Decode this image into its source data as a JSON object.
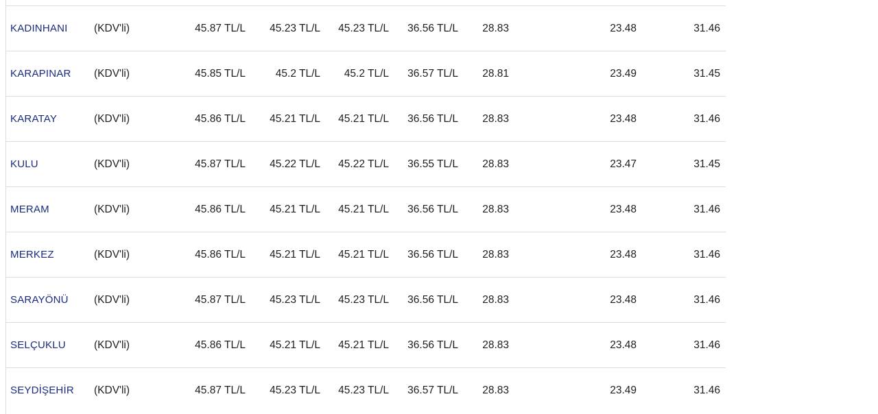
{
  "page": {
    "background_color": "#ffffff"
  },
  "table": {
    "accent_color": "#1a2b7c",
    "border_color": "#dcdcdc",
    "unit": "TL/L",
    "rows": [
      {
        "district": "KADINHANI",
        "tax_note": "(KDV'li)",
        "values": [
          "45.87 TL/L",
          "45.23 TL/L",
          "45.23 TL/L",
          "36.56 TL/L",
          "28.83",
          "23.48",
          "31.46"
        ]
      },
      {
        "district": "KARAPINAR",
        "tax_note": "(KDV'li)",
        "values": [
          "45.85 TL/L",
          "45.2 TL/L",
          "45.2 TL/L",
          "36.57 TL/L",
          "28.81",
          "23.49",
          "31.45"
        ]
      },
      {
        "district": "KARATAY",
        "tax_note": "(KDV'li)",
        "values": [
          "45.86 TL/L",
          "45.21 TL/L",
          "45.21 TL/L",
          "36.56 TL/L",
          "28.83",
          "23.48",
          "31.46"
        ]
      },
      {
        "district": "KULU",
        "tax_note": "(KDV'li)",
        "values": [
          "45.87 TL/L",
          "45.22 TL/L",
          "45.22 TL/L",
          "36.55 TL/L",
          "28.83",
          "23.47",
          "31.45"
        ]
      },
      {
        "district": "MERAM",
        "tax_note": "(KDV'li)",
        "values": [
          "45.86 TL/L",
          "45.21 TL/L",
          "45.21 TL/L",
          "36.56 TL/L",
          "28.83",
          "23.48",
          "31.46"
        ]
      },
      {
        "district": "MERKEZ",
        "tax_note": "(KDV'li)",
        "values": [
          "45.86 TL/L",
          "45.21 TL/L",
          "45.21 TL/L",
          "36.56 TL/L",
          "28.83",
          "23.48",
          "31.46"
        ]
      },
      {
        "district": "SARAYÖNÜ",
        "tax_note": "(KDV'li)",
        "values": [
          "45.87 TL/L",
          "45.23 TL/L",
          "45.23 TL/L",
          "36.56 TL/L",
          "28.83",
          "23.48",
          "31.46"
        ]
      },
      {
        "district": "SELÇUKLU",
        "tax_note": "(KDV'li)",
        "values": [
          "45.86 TL/L",
          "45.21 TL/L",
          "45.21 TL/L",
          "36.56 TL/L",
          "28.83",
          "23.48",
          "31.46"
        ]
      },
      {
        "district": "SEYDİŞEHİR",
        "tax_note": "(KDV'li)",
        "values": [
          "45.87 TL/L",
          "45.23 TL/L",
          "45.23 TL/L",
          "36.57 TL/L",
          "28.83",
          "23.49",
          "31.46"
        ]
      }
    ]
  }
}
